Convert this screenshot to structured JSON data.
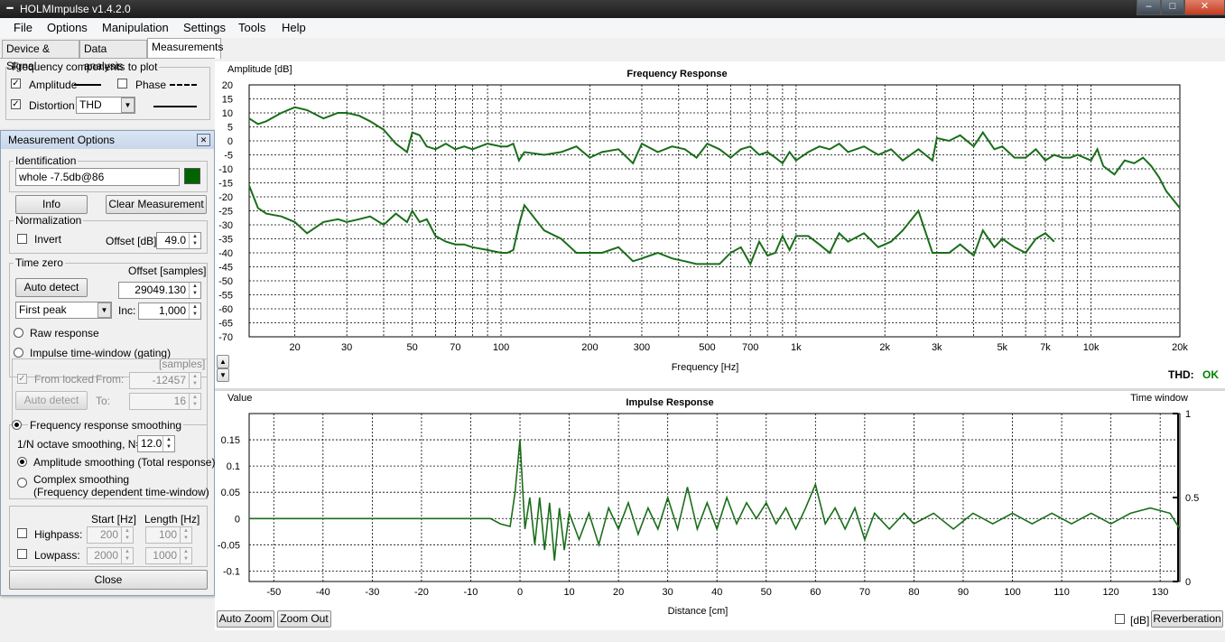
{
  "window": {
    "title": "HOLMImpulse  v1.4.2.0",
    "controls": [
      "–",
      "□",
      "✕"
    ]
  },
  "menu": [
    "File",
    "Options",
    "Manipulation",
    "Settings",
    "Tools",
    "Help"
  ],
  "tabs": [
    "Device & Signal",
    "Data analysis",
    "Measurements"
  ],
  "freq_components": {
    "legend": "Frequency components to plot",
    "amplitude": "Amplitude",
    "phase": "Phase",
    "distortion": "Distortion",
    "distortion_type": "THD"
  },
  "options": {
    "title": "Measurement Options",
    "identification_legend": "Identification",
    "identification_value": "whole -7.5db@86",
    "trace_color": "#006400",
    "info_button": "Info",
    "clear_button": "Clear Measurement",
    "normalization_legend": "Normalization",
    "invert": "Invert",
    "offset_db_label": "Offset [dB]:",
    "offset_db": "49.0",
    "timezero_legend": "Time zero",
    "offset_samples_label": "Offset [samples]",
    "auto_detect": "Auto detect",
    "offset_samples": "29049.130",
    "peak_mode": "First peak",
    "inc_label": "Inc:",
    "inc": "1,000",
    "raw_response": "Raw response",
    "impulse_window": "Impulse time-window (gating)",
    "samples_label": "[samples]",
    "from_locked": "From locked",
    "from_label": "From:",
    "from_value": "-12457",
    "auto_detect2": "Auto detect",
    "to_label": "To:",
    "to_value": "16",
    "smoothing": "Frequency response smoothing",
    "octave_label": "1/N octave smoothing, N=",
    "octave_n": "12.0",
    "amp_smoothing": "Amplitude smoothing (Total response)",
    "complex_smoothing": "Complex smoothing",
    "complex_smoothing_sub": "(Frequency dependent time-window)",
    "start_label": "Start [Hz]",
    "length_label": "Length [Hz]",
    "highpass": "Highpass:",
    "highpass_start": "200",
    "highpass_length": "100",
    "lowpass": "Lowpass:",
    "lowpass_start": "2000",
    "lowpass_length": "1000",
    "close": "Close"
  },
  "buttons": {
    "auto_zoom": "Auto Zoom",
    "zoom_out": "Zoom Out",
    "db": "[dB]",
    "reverberation": "Reverberation",
    "scroll_up": "▲",
    "scroll_down": "▼"
  },
  "thd_status": {
    "label": "THD:",
    "value": "OK",
    "color": "#008000"
  },
  "chart_data": [
    {
      "type": "line",
      "title": "Frequency Response",
      "ylabel": "Amplitude [dB]",
      "xlabel": "Frequency [Hz]",
      "xscale": "log",
      "xlim": [
        14,
        20000
      ],
      "ylim": [
        -70,
        20
      ],
      "yticks": [
        "20",
        "15",
        "10",
        "5",
        "0",
        "-5",
        "-10",
        "-15",
        "-20",
        "-25",
        "-30",
        "-35",
        "-40",
        "-45",
        "-50",
        "-55",
        "-60",
        "-65",
        "-70"
      ],
      "xticks": [
        {
          "v": 20,
          "t": "20"
        },
        {
          "v": 30,
          "t": "30"
        },
        {
          "v": 50,
          "t": "50"
        },
        {
          "v": 70,
          "t": "70"
        },
        {
          "v": 100,
          "t": "100"
        },
        {
          "v": 200,
          "t": "200"
        },
        {
          "v": 300,
          "t": "300"
        },
        {
          "v": 500,
          "t": "500"
        },
        {
          "v": 700,
          "t": "700"
        },
        {
          "v": 1000,
          "t": "1k"
        },
        {
          "v": 2000,
          "t": "2k"
        },
        {
          "v": 3000,
          "t": "3k"
        },
        {
          "v": 5000,
          "t": "5k"
        },
        {
          "v": 7000,
          "t": "7k"
        },
        {
          "v": 10000,
          "t": "10k"
        },
        {
          "v": 20000,
          "t": "20k"
        }
      ],
      "color": "#1a6e1a",
      "series": [
        {
          "x": [
            14,
            15,
            16,
            18,
            20,
            22,
            25,
            28,
            30,
            33,
            36,
            40,
            44,
            48,
            50,
            53,
            56,
            60,
            65,
            70,
            75,
            80,
            90,
            100,
            105,
            110,
            115,
            120,
            140,
            160,
            180,
            200,
            220,
            250,
            280,
            300,
            340,
            380,
            420,
            460,
            500,
            550,
            600,
            650,
            700,
            750,
            800,
            850,
            900,
            950,
            1000,
            1100,
            1200,
            1300,
            1400,
            1500,
            1700,
            1900,
            2100,
            2300,
            2600,
            2900,
            3000,
            3300,
            3600,
            4000,
            4300,
            4700,
            5000,
            5500,
            6000,
            6500,
            7000,
            7500,
            8000,
            8500,
            9000,
            10000,
            10500,
            11000,
            12000,
            13000,
            14000,
            15000,
            16000,
            17000,
            18000,
            20000
          ],
          "y": [
            8,
            6,
            7,
            10,
            12,
            11,
            8,
            10,
            10,
            9,
            7,
            4,
            -1,
            -4,
            3,
            2,
            -2,
            -3,
            -1,
            -3,
            -2,
            -3,
            -1,
            -2,
            -2,
            -1,
            -7,
            -4,
            -5,
            -4,
            -2,
            -6,
            -4,
            -3,
            -8,
            -1,
            -4,
            -2,
            -3,
            -6,
            -1,
            -3,
            -6,
            -3,
            -2,
            -5,
            -4,
            -6,
            -8,
            -4,
            -7,
            -4,
            -2,
            -3,
            -1,
            -4,
            -2,
            -5,
            -3,
            -7,
            -3,
            -7,
            1,
            0,
            2,
            -2,
            3,
            -3,
            -2,
            -6,
            -6,
            -3,
            -7,
            -5,
            -6,
            -6,
            -5,
            -7,
            -3,
            -9,
            -12,
            -7,
            -8,
            -6,
            -9,
            -13,
            -18,
            -24
          ]
        },
        {
          "x": [
            14,
            15,
            16,
            18,
            20,
            22,
            25,
            28,
            30,
            33,
            36,
            40,
            44,
            48,
            50,
            53,
            56,
            60,
            65,
            70,
            75,
            80,
            90,
            100,
            105,
            110,
            115,
            120,
            140,
            160,
            180,
            200,
            220,
            250,
            280,
            300,
            340,
            380,
            420,
            460,
            500,
            550,
            600,
            650,
            700,
            750,
            800,
            850,
            900,
            950,
            1000,
            1100,
            1200,
            1300,
            1400,
            1500,
            1700,
            1900,
            2100,
            2300,
            2600,
            2900,
            3000,
            3300,
            3600,
            4000,
            4300,
            4700,
            5000,
            5500,
            6000,
            6500,
            7000,
            7500
          ],
          "y": [
            -16,
            -24,
            -26,
            -27,
            -29,
            -33,
            -29,
            -28,
            -29,
            -28,
            -27,
            -30,
            -26,
            -29,
            -25,
            -29,
            -28,
            -34,
            -36,
            -37,
            -37,
            -38,
            -39,
            -40,
            -40,
            -39,
            -30,
            -23,
            -32,
            -35,
            -40,
            -40,
            -40,
            -38,
            -43,
            -42,
            -40,
            -42,
            -43,
            -44,
            -44,
            -44,
            -40,
            -38,
            -44,
            -36,
            -41,
            -40,
            -34,
            -39,
            -34,
            -34,
            -37,
            -40,
            -33,
            -36,
            -33,
            -38,
            -36,
            -32,
            -25,
            -40,
            -40,
            -40,
            -37,
            -41,
            -32,
            -38,
            -35,
            -38,
            -40,
            -35,
            -33,
            -36
          ]
        }
      ]
    },
    {
      "type": "line",
      "title": "Impulse Response",
      "ylabel": "Value",
      "y2label": "Time window",
      "xlabel": "Distance [cm]",
      "xlim": [
        -55,
        134
      ],
      "ylim": [
        -0.12,
        0.2
      ],
      "yticks": [
        "0.15",
        "0.1",
        "0.05",
        "0",
        "-0.05",
        "-0.1"
      ],
      "y2ticks": [
        "1",
        "0.5",
        "0"
      ],
      "xticks": [
        "-50",
        "-40",
        "-30",
        "-20",
        "-10",
        "0",
        "10",
        "20",
        "30",
        "40",
        "50",
        "60",
        "70",
        "80",
        "90",
        "100",
        "110",
        "120",
        "130"
      ],
      "color": "#1a6e1a",
      "series": [
        {
          "x": [
            -55,
            -10,
            -6,
            -4,
            -2,
            -1,
            0,
            1,
            2,
            3,
            4,
            5,
            6,
            7,
            8,
            9,
            10,
            12,
            14,
            16,
            18,
            20,
            22,
            24,
            26,
            28,
            30,
            32,
            34,
            36,
            38,
            40,
            42,
            44,
            46,
            48,
            50,
            52,
            54,
            56,
            58,
            60,
            62,
            64,
            66,
            68,
            70,
            72,
            75,
            78,
            80,
            84,
            88,
            92,
            96,
            100,
            104,
            108,
            112,
            116,
            120,
            124,
            128,
            130,
            132,
            134
          ],
          "y": [
            0,
            0,
            0,
            -0.01,
            -0.015,
            0.05,
            0.15,
            -0.02,
            0.04,
            -0.05,
            0.04,
            -0.06,
            0.03,
            -0.08,
            0.02,
            -0.06,
            0.01,
            -0.04,
            0.01,
            -0.05,
            0.02,
            -0.02,
            0.03,
            -0.03,
            0.02,
            -0.02,
            0.04,
            -0.02,
            0.06,
            -0.02,
            0.03,
            -0.02,
            0.04,
            -0.01,
            0.03,
            0,
            0.03,
            -0.01,
            0.02,
            -0.02,
            0.02,
            0.065,
            -0.01,
            0.02,
            -0.02,
            0.02,
            -0.04,
            0.01,
            -0.02,
            0.01,
            -0.01,
            0.01,
            -0.02,
            0.01,
            -0.01,
            0.01,
            -0.01,
            0.01,
            -0.01,
            0.01,
            -0.01,
            0.01,
            0.02,
            0.015,
            0.01,
            -0.02
          ]
        }
      ]
    }
  ]
}
